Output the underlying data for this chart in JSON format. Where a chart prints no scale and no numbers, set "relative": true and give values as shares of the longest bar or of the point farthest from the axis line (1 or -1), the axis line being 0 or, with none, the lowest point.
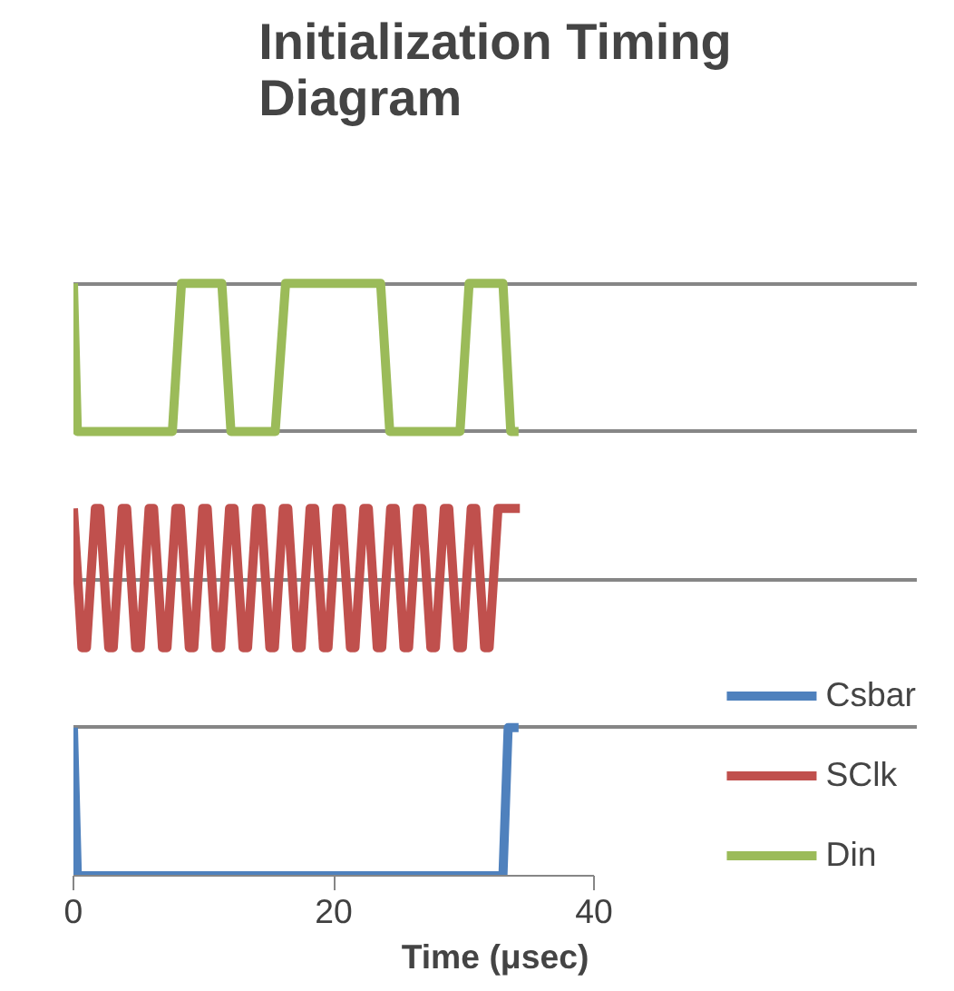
{
  "chart_data": {
    "type": "line",
    "title": "Initialization Timing Diagram",
    "xlabel": "Time (μsec)",
    "xlim": [
      0,
      40
    ],
    "xticks": [
      0,
      20,
      40
    ],
    "relative": true,
    "grid": "y",
    "legend": "right",
    "line_style": "solid",
    "marker": "none",
    "series": [
      {
        "name": "Csbar",
        "color": "#4f81bd",
        "x": [
          0,
          0.3,
          33.0,
          33.4,
          34.2
        ],
        "values": [
          0.25,
          0,
          0,
          0.25,
          0.25
        ]
      },
      {
        "name": "SClk",
        "color": "#c0504d",
        "x": [
          0,
          0.65,
          1.0,
          1.68,
          2.03,
          2.71,
          3.06,
          3.74,
          4.09,
          4.78,
          5.13,
          5.81,
          6.16,
          6.84,
          7.19,
          7.87,
          8.22,
          8.9,
          9.25,
          9.93,
          10.28,
          10.96,
          11.31,
          11.99,
          12.34,
          13.03,
          13.38,
          14.06,
          14.41,
          15.09,
          15.44,
          16.12,
          16.47,
          17.15,
          17.5,
          18.18,
          18.53,
          19.21,
          19.56,
          20.24,
          20.59,
          21.28,
          21.63,
          22.31,
          22.66,
          23.34,
          23.69,
          24.37,
          24.72,
          25.4,
          25.75,
          26.43,
          26.78,
          27.46,
          27.81,
          28.49,
          28.84,
          29.53,
          29.88,
          30.56,
          30.91,
          31.59,
          31.94,
          32.62,
          34.3
        ],
        "values": [
          0.62,
          0.385,
          0.385,
          0.62,
          0.62,
          0.385,
          0.385,
          0.62,
          0.62,
          0.385,
          0.385,
          0.62,
          0.62,
          0.385,
          0.385,
          0.62,
          0.62,
          0.385,
          0.385,
          0.62,
          0.62,
          0.385,
          0.385,
          0.62,
          0.62,
          0.385,
          0.385,
          0.62,
          0.62,
          0.385,
          0.385,
          0.62,
          0.62,
          0.385,
          0.385,
          0.62,
          0.62,
          0.385,
          0.385,
          0.62,
          0.62,
          0.385,
          0.385,
          0.62,
          0.62,
          0.385,
          0.385,
          0.62,
          0.62,
          0.385,
          0.385,
          0.62,
          0.62,
          0.385,
          0.385,
          0.62,
          0.62,
          0.385,
          0.385,
          0.62,
          0.62,
          0.385,
          0.385,
          0.62,
          0.62
        ]
      },
      {
        "name": "Din",
        "color": "#9bbb59",
        "x": [
          0,
          0.3,
          7.6,
          8.3,
          11.4,
          12.1,
          15.5,
          16.3,
          23.6,
          24.3,
          29.7,
          30.4,
          33.0,
          33.6,
          34.2
        ],
        "values": [
          1,
          0.75,
          0.75,
          1,
          1,
          0.75,
          0.75,
          1,
          1,
          0.75,
          0.75,
          1,
          1,
          0.75,
          0.75
        ]
      }
    ]
  }
}
